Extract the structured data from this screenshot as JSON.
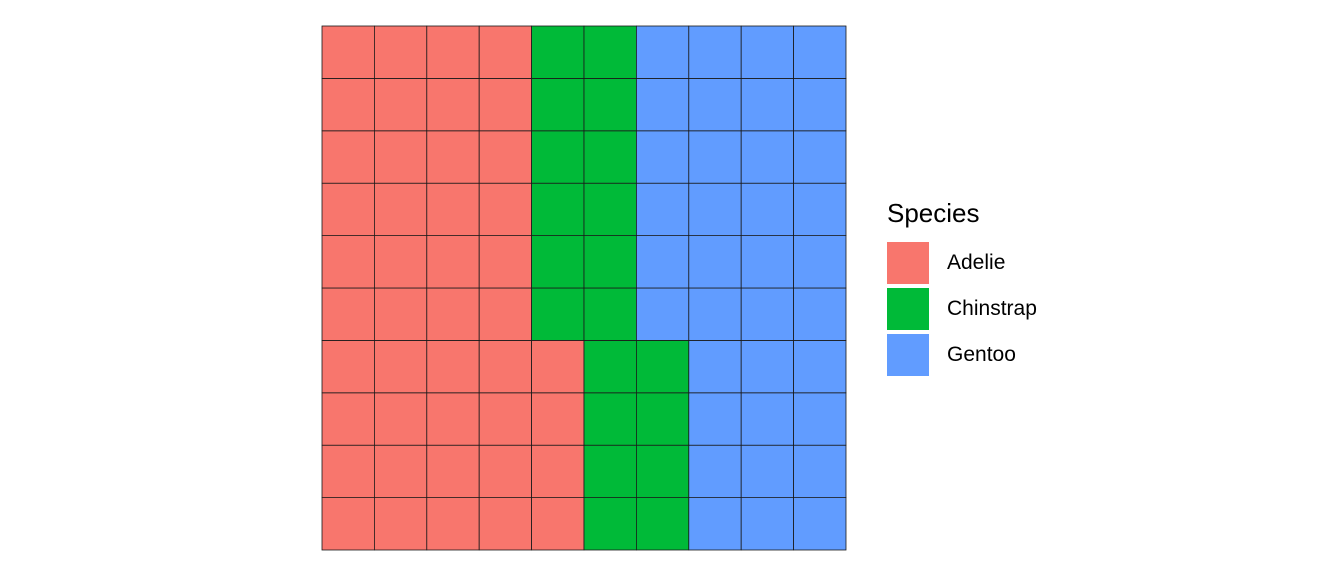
{
  "chart_data": {
    "type": "waffle",
    "title": "",
    "xlabel": "",
    "ylabel": "",
    "grid_rows": 10,
    "grid_cols": 10,
    "categories": [
      "Adelie",
      "Chinstrap",
      "Gentoo"
    ],
    "values": [
      44,
      20,
      36
    ],
    "colors": [
      "#F8766D",
      "#00BA38",
      "#619CFF"
    ],
    "legend": {
      "title": "Species",
      "placement": "right"
    }
  }
}
